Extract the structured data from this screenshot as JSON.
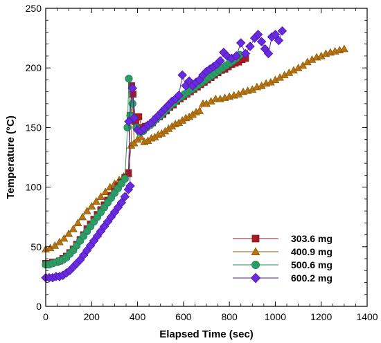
{
  "chart_data": {
    "type": "scatter",
    "xlabel": "Elapsed Time (sec)",
    "ylabel": "Temperature (°C)",
    "xlim": [
      0,
      1400
    ],
    "ylim": [
      0,
      250
    ],
    "x_ticks": [
      0,
      200,
      400,
      600,
      800,
      1000,
      1200,
      1400
    ],
    "y_ticks": [
      0,
      50,
      100,
      150,
      200,
      250
    ],
    "grid": false,
    "legend_position": "bottom-right",
    "series": [
      {
        "name": "303.6 mg",
        "color": "#8b1a1a",
        "fill": "#a51c24",
        "marker": "square",
        "points": [
          [
            0,
            36
          ],
          [
            15,
            36
          ],
          [
            30,
            37
          ],
          [
            45,
            37
          ],
          [
            60,
            38
          ],
          [
            75,
            40
          ],
          [
            90,
            42
          ],
          [
            105,
            45
          ],
          [
            120,
            48
          ],
          [
            135,
            52
          ],
          [
            150,
            56
          ],
          [
            165,
            60
          ],
          [
            180,
            65
          ],
          [
            195,
            69
          ],
          [
            210,
            73
          ],
          [
            225,
            77
          ],
          [
            240,
            81
          ],
          [
            255,
            85
          ],
          [
            270,
            89
          ],
          [
            285,
            93
          ],
          [
            300,
            97
          ],
          [
            315,
            101
          ],
          [
            330,
            104
          ],
          [
            345,
            108
          ],
          [
            360,
            112
          ],
          [
            368,
            160
          ],
          [
            374,
            185
          ],
          [
            380,
            178
          ],
          [
            392,
            155
          ],
          [
            405,
            159
          ],
          [
            420,
            150
          ],
          [
            435,
            151
          ],
          [
            450,
            152
          ],
          [
            465,
            154
          ],
          [
            480,
            157
          ],
          [
            495,
            159
          ],
          [
            510,
            161
          ],
          [
            525,
            164
          ],
          [
            540,
            167
          ],
          [
            555,
            169
          ],
          [
            570,
            172
          ],
          [
            585,
            174
          ],
          [
            600,
            176
          ],
          [
            615,
            178
          ],
          [
            630,
            180
          ],
          [
            645,
            182
          ],
          [
            660,
            184
          ],
          [
            675,
            186
          ],
          [
            690,
            188
          ],
          [
            705,
            190
          ],
          [
            720,
            192
          ],
          [
            735,
            194
          ],
          [
            750,
            196
          ],
          [
            765,
            198
          ],
          [
            780,
            199
          ],
          [
            795,
            201
          ],
          [
            810,
            203
          ],
          [
            825,
            204
          ],
          [
            840,
            205
          ],
          [
            855,
            207
          ],
          [
            870,
            208
          ]
        ]
      },
      {
        "name": "400.9 mg",
        "color": "#8b5a00",
        "fill": "#b87315",
        "marker": "triangle",
        "points": [
          [
            0,
            48
          ],
          [
            20,
            49
          ],
          [
            40,
            51
          ],
          [
            60,
            54
          ],
          [
            80,
            57
          ],
          [
            100,
            61
          ],
          [
            120,
            65
          ],
          [
            140,
            70
          ],
          [
            160,
            75
          ],
          [
            180,
            80
          ],
          [
            200,
            84
          ],
          [
            220,
            88
          ],
          [
            240,
            92
          ],
          [
            260,
            96
          ],
          [
            280,
            100
          ],
          [
            300,
            103
          ],
          [
            320,
            106
          ],
          [
            340,
            109
          ],
          [
            360,
            111
          ],
          [
            372,
            135
          ],
          [
            378,
            178
          ],
          [
            385,
            137
          ],
          [
            400,
            140
          ],
          [
            415,
            142
          ],
          [
            430,
            138
          ],
          [
            445,
            139
          ],
          [
            460,
            141
          ],
          [
            475,
            142
          ],
          [
            490,
            144
          ],
          [
            505,
            145
          ],
          [
            520,
            147
          ],
          [
            535,
            149
          ],
          [
            550,
            151
          ],
          [
            565,
            153
          ],
          [
            580,
            154
          ],
          [
            595,
            156
          ],
          [
            610,
            158
          ],
          [
            625,
            159
          ],
          [
            640,
            161
          ],
          [
            655,
            163
          ],
          [
            670,
            164
          ],
          [
            685,
            170
          ],
          [
            700,
            170
          ],
          [
            720,
            172
          ],
          [
            740,
            174
          ],
          [
            760,
            174
          ],
          [
            780,
            175
          ],
          [
            800,
            176
          ],
          [
            820,
            177
          ],
          [
            840,
            178
          ],
          [
            860,
            180
          ],
          [
            880,
            181
          ],
          [
            900,
            182
          ],
          [
            920,
            184
          ],
          [
            940,
            185
          ],
          [
            960,
            187
          ],
          [
            980,
            188
          ],
          [
            1000,
            190
          ],
          [
            1020,
            192
          ],
          [
            1040,
            194
          ],
          [
            1060,
            196
          ],
          [
            1080,
            198
          ],
          [
            1100,
            200
          ],
          [
            1120,
            202
          ],
          [
            1140,
            205
          ],
          [
            1160,
            207
          ],
          [
            1180,
            209
          ],
          [
            1200,
            210
          ],
          [
            1220,
            212
          ],
          [
            1240,
            213
          ],
          [
            1260,
            214
          ],
          [
            1280,
            215
          ],
          [
            1300,
            216
          ]
        ]
      },
      {
        "name": "500.6 mg",
        "color": "#1a8a5a",
        "fill": "#2e9b66",
        "marker": "circle",
        "points": [
          [
            0,
            35
          ],
          [
            15,
            35
          ],
          [
            30,
            36
          ],
          [
            45,
            37
          ],
          [
            60,
            38
          ],
          [
            75,
            39
          ],
          [
            90,
            41
          ],
          [
            105,
            44
          ],
          [
            120,
            47
          ],
          [
            135,
            51
          ],
          [
            150,
            55
          ],
          [
            165,
            59
          ],
          [
            180,
            63
          ],
          [
            195,
            67
          ],
          [
            210,
            71
          ],
          [
            225,
            75
          ],
          [
            240,
            79
          ],
          [
            255,
            83
          ],
          [
            270,
            87
          ],
          [
            285,
            91
          ],
          [
            300,
            95
          ],
          [
            315,
            99
          ],
          [
            330,
            103
          ],
          [
            345,
            107
          ],
          [
            356,
            150
          ],
          [
            362,
            191
          ],
          [
            368,
            160
          ],
          [
            378,
            170
          ],
          [
            395,
            150
          ],
          [
            410,
            146
          ],
          [
            425,
            147
          ],
          [
            440,
            150
          ],
          [
            455,
            152
          ],
          [
            470,
            155
          ],
          [
            485,
            158
          ],
          [
            500,
            160
          ],
          [
            515,
            163
          ],
          [
            530,
            166
          ],
          [
            545,
            169
          ],
          [
            560,
            171
          ],
          [
            575,
            174
          ],
          [
            590,
            176
          ],
          [
            605,
            178
          ],
          [
            620,
            180
          ],
          [
            635,
            182
          ],
          [
            650,
            184
          ],
          [
            665,
            186
          ],
          [
            680,
            188
          ],
          [
            695,
            190
          ],
          [
            710,
            192
          ],
          [
            725,
            194
          ],
          [
            740,
            196
          ],
          [
            755,
            198
          ],
          [
            770,
            200
          ],
          [
            785,
            202
          ],
          [
            800,
            204
          ],
          [
            815,
            206
          ],
          [
            830,
            208
          ],
          [
            845,
            211
          ]
        ]
      },
      {
        "name": "600.2 mg",
        "color": "#4a1aa8",
        "fill": "#6a2adf",
        "marker": "diamond",
        "points": [
          [
            0,
            24
          ],
          [
            15,
            24
          ],
          [
            30,
            24
          ],
          [
            45,
            25
          ],
          [
            60,
            25
          ],
          [
            75,
            26
          ],
          [
            90,
            28
          ],
          [
            105,
            30
          ],
          [
            120,
            33
          ],
          [
            135,
            36
          ],
          [
            150,
            39
          ],
          [
            165,
            43
          ],
          [
            180,
            47
          ],
          [
            195,
            51
          ],
          [
            210,
            55
          ],
          [
            225,
            59
          ],
          [
            240,
            63
          ],
          [
            255,
            67
          ],
          [
            270,
            71
          ],
          [
            285,
            75
          ],
          [
            300,
            79
          ],
          [
            315,
            83
          ],
          [
            330,
            87
          ],
          [
            345,
            92
          ],
          [
            360,
            98
          ],
          [
            368,
            101
          ],
          [
            362,
            155
          ],
          [
            378,
            183
          ],
          [
            385,
            158
          ],
          [
            400,
            148
          ],
          [
            415,
            147
          ],
          [
            430,
            149
          ],
          [
            445,
            152
          ],
          [
            460,
            154
          ],
          [
            475,
            157
          ],
          [
            490,
            160
          ],
          [
            505,
            163
          ],
          [
            520,
            166
          ],
          [
            535,
            169
          ],
          [
            550,
            172
          ],
          [
            565,
            174
          ],
          [
            580,
            177
          ],
          [
            595,
            194
          ],
          [
            610,
            185
          ],
          [
            625,
            189
          ],
          [
            640,
            185
          ],
          [
            655,
            188
          ],
          [
            670,
            190
          ],
          [
            685,
            194
          ],
          [
            700,
            197
          ],
          [
            715,
            199
          ],
          [
            730,
            201
          ],
          [
            745,
            203
          ],
          [
            760,
            206
          ],
          [
            775,
            213
          ],
          [
            790,
            210
          ],
          [
            810,
            208
          ],
          [
            830,
            210
          ],
          [
            850,
            221
          ],
          [
            870,
            212
          ],
          [
            890,
            218
          ],
          [
            910,
            225
          ],
          [
            925,
            228
          ],
          [
            940,
            222
          ],
          [
            955,
            216
          ],
          [
            970,
            212
          ],
          [
            985,
            226
          ],
          [
            1000,
            228
          ],
          [
            1015,
            223
          ],
          [
            1030,
            231
          ]
        ]
      }
    ]
  }
}
